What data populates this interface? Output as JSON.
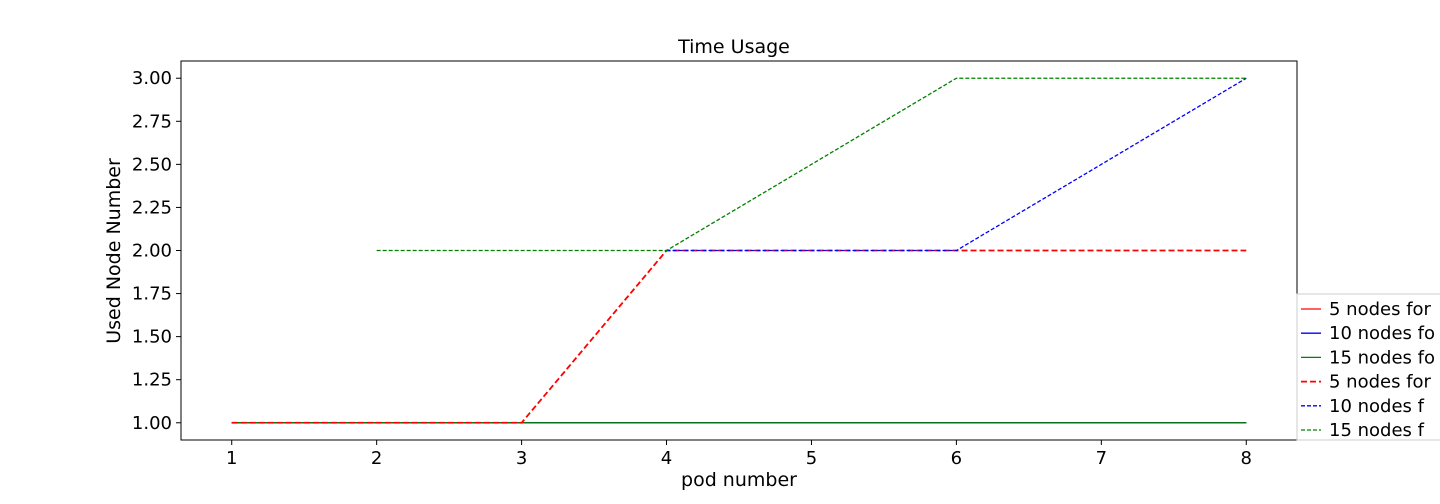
{
  "chart_data": {
    "type": "line",
    "title": "Time Usage",
    "xlabel": "pod number",
    "ylabel": "Used Node Number",
    "xlim": [
      0.65,
      8.35
    ],
    "ylim": [
      0.9,
      3.1
    ],
    "xticks": [
      "1",
      "2",
      "3",
      "4",
      "5",
      "6",
      "7",
      "8"
    ],
    "yticks": [
      "1.00",
      "1.25",
      "1.50",
      "1.75",
      "2.00",
      "2.25",
      "2.50",
      "2.75",
      "3.00"
    ],
    "grid": false,
    "legend_position": "right (clipped)",
    "series": [
      {
        "name": "5 nodes for",
        "color": "#ff0000",
        "style": "solid",
        "x": [
          1,
          2,
          3,
          4,
          5,
          6,
          7,
          8
        ],
        "values": [
          1,
          1,
          1,
          1,
          1,
          1,
          1,
          1
        ]
      },
      {
        "name": "10 nodes fo",
        "color": "#0000ff",
        "style": "solid",
        "x": [
          1,
          2,
          3,
          4,
          5,
          6,
          7,
          8
        ],
        "values": [
          1,
          1,
          1,
          1,
          1,
          1,
          1,
          1
        ]
      },
      {
        "name": "15 nodes fo",
        "color": "#008000",
        "style": "solid",
        "x": [
          1,
          2,
          3,
          4,
          5,
          6,
          7,
          8
        ],
        "values": [
          1,
          1,
          1,
          1,
          1,
          1,
          1,
          1
        ]
      },
      {
        "name": "5 nodes for",
        "color": "#ff0000",
        "style": "dashed",
        "x": [
          1,
          2,
          3,
          4,
          5,
          6,
          7,
          8
        ],
        "values": [
          1,
          1,
          1,
          2,
          2,
          2,
          2,
          2
        ]
      },
      {
        "name": "10 nodes  f",
        "color": "#0000ff",
        "style": "dashed-fine",
        "x": [
          4,
          5,
          6,
          7,
          8
        ],
        "values": [
          2,
          2,
          2,
          2.5,
          3
        ]
      },
      {
        "name": "15 nodes  f",
        "color": "#008000",
        "style": "dashed-fine",
        "x": [
          2,
          3,
          4,
          5,
          6,
          7,
          8
        ],
        "values": [
          2,
          2,
          2,
          2.5,
          3,
          3,
          3
        ]
      }
    ]
  }
}
